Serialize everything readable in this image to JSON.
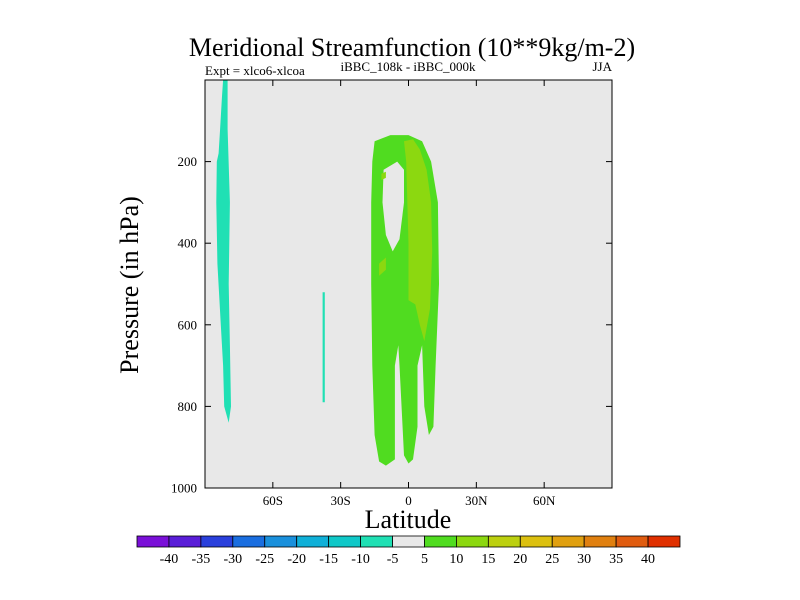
{
  "chart_data": {
    "type": "contour",
    "title": "Meridional Streamfunction (10**9kg/m-2)",
    "subtitle_left": "Expt = xlco6-xlcoa",
    "subtitle_center": "iBBC_108k - iBBC_000k",
    "subtitle_right": "JJA",
    "xlabel": "Latitude",
    "ylabel": "Pressure (in hPa)",
    "xlim": [
      -90,
      90
    ],
    "ylim": [
      1000,
      0
    ],
    "y_inverted": true,
    "xticks": [
      {
        "value": -60,
        "label": "60S"
      },
      {
        "value": -30,
        "label": "30S"
      },
      {
        "value": 0,
        "label": "0"
      },
      {
        "value": 30,
        "label": "30N"
      },
      {
        "value": 60,
        "label": "60N"
      }
    ],
    "yticks": [
      {
        "value": 200,
        "label": "200"
      },
      {
        "value": 400,
        "label": "400"
      },
      {
        "value": 600,
        "label": "600"
      },
      {
        "value": 800,
        "label": "800"
      },
      {
        "value": 1000,
        "label": "1000"
      }
    ],
    "colors": {
      "background": "#e8e8e8",
      "near_zero": "#e8e8e8"
    },
    "colorbar": {
      "levels": [
        -40,
        -35,
        -30,
        -25,
        -20,
        -15,
        -10,
        -5,
        5,
        10,
        15,
        20,
        25,
        30,
        35,
        40
      ],
      "level_labels": [
        "-40",
        "-35",
        "-30",
        "-25",
        "-20",
        "-15",
        "-10",
        "-5",
        "5",
        "10",
        "15",
        "20",
        "25",
        "30",
        "35",
        "40"
      ],
      "colors": [
        "#7a10d8",
        "#5a1ed8",
        "#2a40dc",
        "#1a6ee0",
        "#1a90dc",
        "#10b0d8",
        "#10c8c8",
        "#20e0b4",
        "#e8e8e8",
        "#50dc20",
        "#8cd810",
        "#bcd010",
        "#dcc010",
        "#e0a010",
        "#e08010",
        "#e05c10",
        "#e03000"
      ]
    },
    "regions": [
      {
        "level_index": 7,
        "polygon": [
          [
            -82,
            0
          ],
          [
            -80,
            0
          ],
          [
            -80,
            120
          ],
          [
            -79,
            300
          ],
          [
            -79.5,
            500
          ],
          [
            -79,
            650
          ],
          [
            -78.5,
            800
          ],
          [
            -79.5,
            840
          ],
          [
            -81.5,
            800
          ],
          [
            -82,
            700
          ],
          [
            -83,
            600
          ],
          [
            -84.5,
            450
          ],
          [
            -85,
            300
          ],
          [
            -84.8,
            200
          ],
          [
            -84,
            180
          ],
          [
            -83.3,
            120
          ],
          [
            -82.5,
            40
          ]
        ]
      },
      {
        "level_index": 7,
        "polygon": [
          [
            -38,
            520
          ],
          [
            -37,
            520
          ],
          [
            -37,
            790
          ],
          [
            -38,
            790
          ]
        ]
      },
      {
        "level_index": 9,
        "polygon": [
          [
            -15,
            150
          ],
          [
            -8,
            135
          ],
          [
            0,
            135
          ],
          [
            6,
            150
          ],
          [
            10,
            200
          ],
          [
            13,
            300
          ],
          [
            13.5,
            500
          ],
          [
            12,
            700
          ],
          [
            11,
            850
          ],
          [
            9,
            870
          ],
          [
            7,
            800
          ],
          [
            6,
            650
          ],
          [
            4,
            700
          ],
          [
            4,
            850
          ],
          [
            2,
            930
          ],
          [
            0,
            940
          ],
          [
            -2,
            920
          ],
          [
            -4,
            700
          ],
          [
            -4.5,
            650
          ],
          [
            -6,
            700
          ],
          [
            -6,
            930
          ],
          [
            -10,
            945
          ],
          [
            -13,
            935
          ],
          [
            -15,
            870
          ],
          [
            -16,
            700
          ],
          [
            -16.5,
            500
          ],
          [
            -16.5,
            300
          ],
          [
            -16,
            200
          ]
        ]
      },
      {
        "level_index": 8,
        "polygon": [
          [
            -11,
            220
          ],
          [
            -5,
            200
          ],
          [
            -2,
            220
          ],
          [
            -2,
            300
          ],
          [
            -4,
            390
          ],
          [
            -7,
            420
          ],
          [
            -10,
            380
          ],
          [
            -11.5,
            300
          ]
        ]
      },
      {
        "level_index": 10,
        "polygon": [
          [
            -2,
            150
          ],
          [
            2,
            145
          ],
          [
            5,
            170
          ],
          [
            8,
            220
          ],
          [
            10,
            300
          ],
          [
            10.5,
            420
          ],
          [
            9.5,
            560
          ],
          [
            7,
            640
          ],
          [
            5,
            600
          ],
          [
            3,
            550
          ],
          [
            0,
            540
          ],
          [
            0,
            400
          ],
          [
            -1,
            200
          ]
        ]
      },
      {
        "level_index": 10,
        "polygon": [
          [
            -13,
            450
          ],
          [
            -10,
            435
          ],
          [
            -10,
            465
          ],
          [
            -13,
            480
          ]
        ]
      },
      {
        "level_index": 10,
        "polygon": [
          [
            -12,
            230
          ],
          [
            -10,
            225
          ],
          [
            -10,
            240
          ],
          [
            -12,
            245
          ]
        ]
      }
    ]
  }
}
